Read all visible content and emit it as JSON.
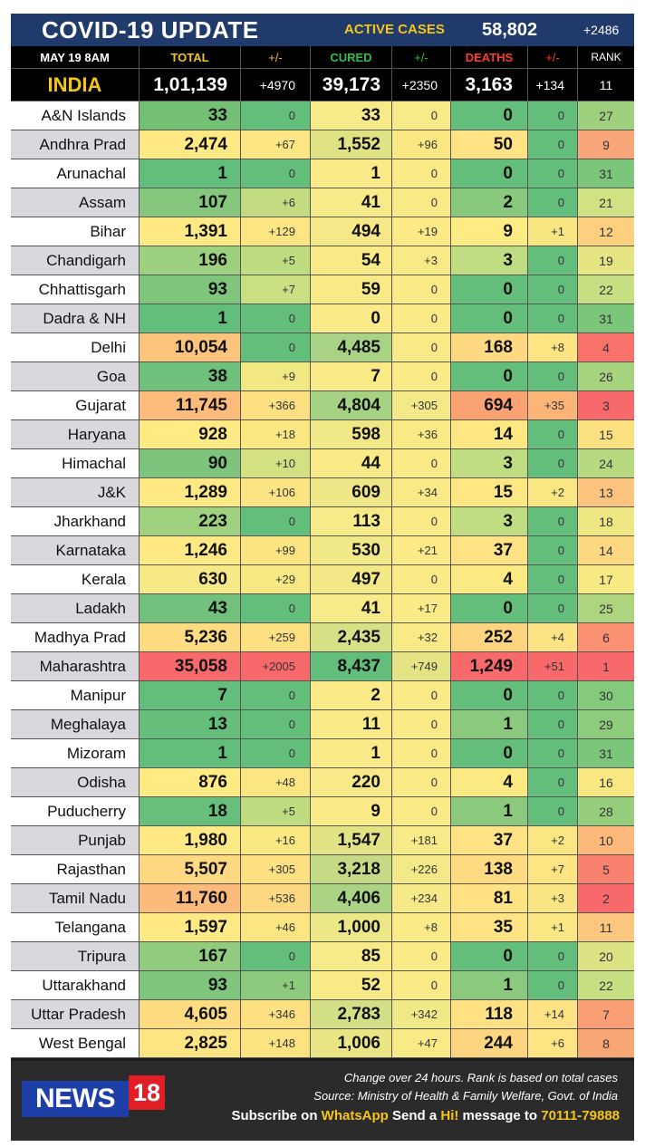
{
  "header": {
    "title": "COVID-19 UPDATE",
    "active_label": "ACTIVE CASES",
    "active_value": "58,802",
    "active_change": "+2486"
  },
  "columns": {
    "date": "MAY 19  8AM",
    "total": "TOTAL",
    "total_change": "+/-",
    "cured": "CURED",
    "cured_change": "+/-",
    "deaths": "DEATHS",
    "deaths_change": "+/-",
    "rank": "RANK"
  },
  "india": {
    "name": "INDIA",
    "total": "1,01,139",
    "total_change": "+4970",
    "cured": "39,173",
    "cured_change": "+2350",
    "deaths": "3,163",
    "deaths_change": "+134",
    "rank": "11"
  },
  "states": [
    {
      "name": "A&N Islands",
      "total": "33",
      "total_change": "0",
      "cured": "33",
      "cured_change": "0",
      "deaths": "0",
      "deaths_change": "0",
      "rank": "27",
      "colors": [
        "#73c075",
        "#63be7b",
        "#f7ea88",
        "#f7ea88",
        "#63be7b",
        "#63be7b",
        "#9fd07e"
      ]
    },
    {
      "name": "Andhra Prad",
      "total": "2,474",
      "total_change": "+67",
      "cured": "1,552",
      "cured_change": "+96",
      "deaths": "50",
      "deaths_change": "0",
      "rank": "9",
      "colors": [
        "#ffe985",
        "#fde683",
        "#e0e384",
        "#fbe883",
        "#ffe384",
        "#63be7b",
        "#f9a77a"
      ]
    },
    {
      "name": "Arunachal",
      "total": "1",
      "total_change": "0",
      "cured": "1",
      "cured_change": "0",
      "deaths": "0",
      "deaths_change": "0",
      "rank": "31",
      "colors": [
        "#63be7b",
        "#63be7b",
        "#fbeb88",
        "#fbeb88",
        "#63be7b",
        "#63be7b",
        "#7cc67c"
      ]
    },
    {
      "name": "Assam",
      "total": "107",
      "total_change": "+6",
      "cured": "41",
      "cured_change": "0",
      "deaths": "2",
      "deaths_change": "0",
      "rank": "21",
      "colors": [
        "#86c77d",
        "#c3dc81",
        "#f7ea88",
        "#f9ea88",
        "#88c97d",
        "#63be7b",
        "#d0e283"
      ]
    },
    {
      "name": "Bihar",
      "total": "1,391",
      "total_change": "+129",
      "cured": "494",
      "cured_change": "+19",
      "deaths": "9",
      "deaths_change": "+1",
      "rank": "12",
      "colors": [
        "#ffe985",
        "#fde583",
        "#f4e888",
        "#fde986",
        "#ffeb84",
        "#f8e683",
        "#fcd07f"
      ]
    },
    {
      "name": "Chandigarh",
      "total": "196",
      "total_change": "+5",
      "cured": "54",
      "cured_change": "+3",
      "deaths": "3",
      "deaths_change": "0",
      "rank": "19",
      "colors": [
        "#9ed17f",
        "#c0dc81",
        "#f9ea88",
        "#f9ea88",
        "#c1dd83",
        "#63be7b",
        "#e5e584"
      ]
    },
    {
      "name": "Chhattisgarh",
      "total": "93",
      "total_change": "+7",
      "cured": "59",
      "cured_change": "0",
      "deaths": "0",
      "deaths_change": "0",
      "rank": "22",
      "colors": [
        "#7fc57c",
        "#c8df82",
        "#f9ea88",
        "#fbeb88",
        "#63be7b",
        "#63be7b",
        "#c6df82"
      ]
    },
    {
      "name": "Dadra & NH",
      "total": "1",
      "total_change": "0",
      "cured": "0",
      "cured_change": "0",
      "deaths": "0",
      "deaths_change": "0",
      "rank": "31",
      "colors": [
        "#63be7b",
        "#63be7b",
        "#fbeb88",
        "#fbeb88",
        "#63be7b",
        "#63be7b",
        "#7cc67c"
      ]
    },
    {
      "name": "Delhi",
      "total": "10,054",
      "total_change": "0",
      "cured": "4,485",
      "cured_change": "0",
      "deaths": "168",
      "deaths_change": "+8",
      "rank": "4",
      "colors": [
        "#fdc47c",
        "#63be7b",
        "#a9d384",
        "#f9ea88",
        "#ffd882",
        "#fee482",
        "#f8726b"
      ]
    },
    {
      "name": "Goa",
      "total": "38",
      "total_change": "+9",
      "cured": "7",
      "cured_change": "0",
      "deaths": "0",
      "deaths_change": "0",
      "rank": "26",
      "colors": [
        "#6fc07b",
        "#f2e883",
        "#fbeb88",
        "#fbeb88",
        "#63be7b",
        "#63be7b",
        "#a7d37f"
      ]
    },
    {
      "name": "Gujarat",
      "total": "11,745",
      "total_change": "+366",
      "cured": "4,804",
      "cured_change": "+305",
      "deaths": "694",
      "deaths_change": "+35",
      "rank": "3",
      "colors": [
        "#fdbc7b",
        "#fde081",
        "#a6d283",
        "#f4e988",
        "#fba272",
        "#fcb577",
        "#f8696b"
      ]
    },
    {
      "name": "Haryana",
      "total": "928",
      "total_change": "+18",
      "cured": "598",
      "cured_change": "+36",
      "deaths": "14",
      "deaths_change": "0",
      "rank": "15",
      "colors": [
        "#ffea84",
        "#fbe883",
        "#f0e786",
        "#f9ea86",
        "#ffe784",
        "#63be7b",
        "#fbe182"
      ]
    },
    {
      "name": "Himachal",
      "total": "90",
      "total_change": "+10",
      "cured": "44",
      "cured_change": "0",
      "deaths": "3",
      "deaths_change": "0",
      "rank": "24",
      "colors": [
        "#7ec47c",
        "#d3e182",
        "#f9ea88",
        "#fbeb88",
        "#c1dd83",
        "#63be7b",
        "#b7da80"
      ]
    },
    {
      "name": "J&K",
      "total": "1,289",
      "total_change": "+106",
      "cured": "609",
      "cured_change": "+34",
      "deaths": "15",
      "deaths_change": "+2",
      "rank": "13",
      "colors": [
        "#ffe985",
        "#fce383",
        "#efe787",
        "#f9ea87",
        "#ffe784",
        "#fbe684",
        "#fcc47e"
      ]
    },
    {
      "name": "Jharkhand",
      "total": "223",
      "total_change": "0",
      "cured": "113",
      "cured_change": "0",
      "deaths": "3",
      "deaths_change": "0",
      "rank": "18",
      "colors": [
        "#a0d17f",
        "#63be7b",
        "#f7ea88",
        "#fbeb88",
        "#c1dd83",
        "#63be7b",
        "#eee784"
      ]
    },
    {
      "name": "Karnataka",
      "total": "1,246",
      "total_change": "+99",
      "cured": "530",
      "cured_change": "+21",
      "deaths": "37",
      "deaths_change": "0",
      "rank": "14",
      "colors": [
        "#ffe985",
        "#fce483",
        "#f1e887",
        "#fbea87",
        "#ffe384",
        "#63be7b",
        "#fcd981"
      ]
    },
    {
      "name": "Kerala",
      "total": "630",
      "total_change": "+29",
      "cured": "497",
      "cured_change": "0",
      "deaths": "4",
      "deaths_change": "0",
      "rank": "17",
      "colors": [
        "#f7ea86",
        "#f7e883",
        "#f3e888",
        "#fbeb88",
        "#fbea84",
        "#63be7b",
        "#f7e983"
      ]
    },
    {
      "name": "Ladakh",
      "total": "43",
      "total_change": "0",
      "cured": "41",
      "cured_change": "+17",
      "deaths": "0",
      "deaths_change": "0",
      "rank": "25",
      "colors": [
        "#71c07b",
        "#63be7b",
        "#f7ea88",
        "#fbeb88",
        "#63be7b",
        "#63be7b",
        "#add580"
      ]
    },
    {
      "name": "Madhya Prad",
      "total": "5,236",
      "total_change": "+259",
      "cured": "2,435",
      "cured_change": "+32",
      "deaths": "252",
      "deaths_change": "+4",
      "rank": "6",
      "colors": [
        "#fedc82",
        "#fde082",
        "#d6e187",
        "#f8ea87",
        "#fdd47f",
        "#fde383",
        "#f99172"
      ]
    },
    {
      "name": "Maharashtra",
      "total": "35,058",
      "total_change": "+2005",
      "cured": "8,437",
      "cured_change": "+749",
      "deaths": "1,249",
      "deaths_change": "+51",
      "rank": "1",
      "colors": [
        "#f8696b",
        "#f8696b",
        "#63be7b",
        "#e4e485",
        "#f8696b",
        "#f8696b",
        "#f8696b"
      ]
    },
    {
      "name": "Manipur",
      "total": "7",
      "total_change": "0",
      "cured": "2",
      "cured_change": "0",
      "deaths": "0",
      "deaths_change": "0",
      "rank": "30",
      "colors": [
        "#64be7b",
        "#63be7b",
        "#fbeb88",
        "#fbeb88",
        "#63be7b",
        "#63be7b",
        "#85c97d"
      ]
    },
    {
      "name": "Meghalaya",
      "total": "13",
      "total_change": "0",
      "cured": "11",
      "cured_change": "0",
      "deaths": "1",
      "deaths_change": "0",
      "rank": "29",
      "colors": [
        "#66be7b",
        "#63be7b",
        "#fbeb88",
        "#fbeb88",
        "#8bc97e",
        "#63be7b",
        "#8ecc7d"
      ]
    },
    {
      "name": "Mizoram",
      "total": "1",
      "total_change": "0",
      "cured": "1",
      "cured_change": "0",
      "deaths": "0",
      "deaths_change": "0",
      "rank": "31",
      "colors": [
        "#63be7b",
        "#63be7b",
        "#fbeb88",
        "#fbeb88",
        "#63be7b",
        "#63be7b",
        "#7cc67c"
      ]
    },
    {
      "name": "Odisha",
      "total": "876",
      "total_change": "+48",
      "cured": "220",
      "cured_change": "0",
      "deaths": "4",
      "deaths_change": "0",
      "rank": "16",
      "colors": [
        "#ffea84",
        "#fbe683",
        "#f8ea88",
        "#fbeb88",
        "#fbea84",
        "#63be7b",
        "#f9e783"
      ]
    },
    {
      "name": "Puducherry",
      "total": "18",
      "total_change": "+5",
      "cured": "9",
      "cured_change": "0",
      "deaths": "1",
      "deaths_change": "0",
      "rank": "28",
      "colors": [
        "#68bf7b",
        "#c0dc81",
        "#fbeb88",
        "#fbeb88",
        "#8bc97e",
        "#63be7b",
        "#96ce7e"
      ]
    },
    {
      "name": "Punjab",
      "total": "1,980",
      "total_change": "+16",
      "cured": "1,547",
      "cured_change": "+181",
      "deaths": "37",
      "deaths_change": "+2",
      "rank": "10",
      "colors": [
        "#ffe985",
        "#fae883",
        "#e1e385",
        "#f7ea88",
        "#ffe384",
        "#fbe684",
        "#fcb97b"
      ]
    },
    {
      "name": "Rajasthan",
      "total": "5,507",
      "total_change": "+305",
      "cured": "3,218",
      "cured_change": "+226",
      "deaths": "138",
      "deaths_change": "+7",
      "rank": "5",
      "colors": [
        "#fed982",
        "#fde082",
        "#c6db86",
        "#f4e988",
        "#ffdc82",
        "#fee482",
        "#f8816f"
      ]
    },
    {
      "name": "Tamil Nadu",
      "total": "11,760",
      "total_change": "+536",
      "cured": "4,406",
      "cured_change": "+234",
      "deaths": "81",
      "deaths_change": "+3",
      "rank": "2",
      "colors": [
        "#fdbb7b",
        "#fcd880",
        "#aad383",
        "#f6e988",
        "#fee283",
        "#fae584",
        "#f8696b"
      ]
    },
    {
      "name": "Telangana",
      "total": "1,597",
      "total_change": "+46",
      "cured": "1,000",
      "cured_change": "+8",
      "deaths": "35",
      "deaths_change": "+1",
      "rank": "11",
      "colors": [
        "#ffe985",
        "#fbe683",
        "#ebe686",
        "#fbeb88",
        "#ffe384",
        "#fbe784",
        "#fbc67d"
      ]
    },
    {
      "name": "Tripura",
      "total": "167",
      "total_change": "0",
      "cured": "85",
      "cured_change": "0",
      "deaths": "0",
      "deaths_change": "0",
      "rank": "20",
      "colors": [
        "#90cb7e",
        "#63be7b",
        "#f7ea88",
        "#fbeb88",
        "#63be7b",
        "#63be7b",
        "#dbe283"
      ]
    },
    {
      "name": "Uttarakhand",
      "total": "93",
      "total_change": "+1",
      "cured": "52",
      "cured_change": "0",
      "deaths": "1",
      "deaths_change": "0",
      "rank": "22",
      "colors": [
        "#7fc57c",
        "#8ccb7e",
        "#f9ea88",
        "#fbeb88",
        "#8bc97e",
        "#63be7b",
        "#c6df82"
      ]
    },
    {
      "name": "Uttar Pradesh",
      "total": "4,605",
      "total_change": "+346",
      "cured": "2,783",
      "cured_change": "+342",
      "deaths": "118",
      "deaths_change": "+14",
      "rank": "7",
      "colors": [
        "#fedd82",
        "#fde082",
        "#d2df86",
        "#f1e888",
        "#ffe083",
        "#fde183",
        "#f99e75"
      ]
    },
    {
      "name": "West Bengal",
      "total": "2,825",
      "total_change": "+148",
      "cured": "1,006",
      "cured_change": "+47",
      "deaths": "244",
      "deaths_change": "+6",
      "rank": "8",
      "colors": [
        "#fee583",
        "#fde282",
        "#eae686",
        "#f9ea88",
        "#fdd480",
        "#fee483",
        "#f9a676"
      ]
    }
  ],
  "footer": {
    "logo_word": "NEWS",
    "logo_number": "18",
    "note_change": "Change over 24 hours. Rank is based on total cases",
    "note_source": "Source: Ministry of Health & Family Welfare, Govt. of India",
    "subscribe_a": "Subscribe on ",
    "subscribe_whatsapp": "WhatsApp",
    "subscribe_b": " Send a ",
    "subscribe_hi": "Hi!",
    "subscribe_c": " message to ",
    "subscribe_number": "70111-79888"
  }
}
